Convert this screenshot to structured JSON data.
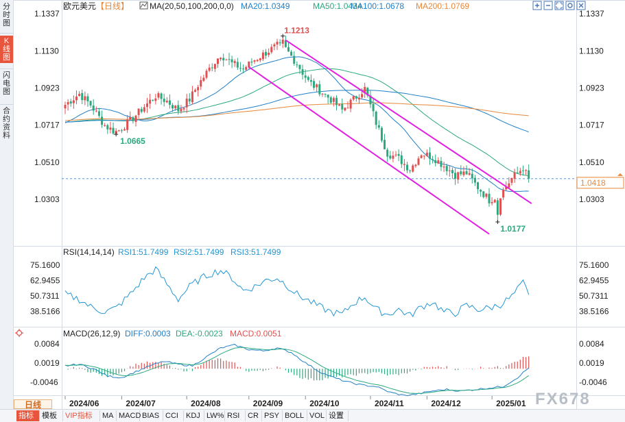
{
  "sidebar": {
    "tabs": [
      {
        "label": "分时图"
      },
      {
        "label": "K线图",
        "active": true
      },
      {
        "label": "闪电图"
      },
      {
        "label": "合约资料"
      }
    ]
  },
  "toolbar": {
    "icons": [
      "zoom-in-icon",
      "zoom-out-icon",
      "fullscreen-icon",
      "settings-icon",
      "close-icon"
    ]
  },
  "main": {
    "symbol": "欧元美元",
    "period": "【日线】",
    "ma_label": "MA(20,50,100,200,0,0)",
    "ma20_label": "MA20:1.0349",
    "ma50_label": "MA50:1.0434",
    "ma100_label": "MA100:1.0678",
    "ma200_label": "MA200:1.0769",
    "last_price": "1.0418",
    "high_label": "1.1213",
    "low1_label": "1.0665",
    "low2_label": "1.0177"
  },
  "rsi": {
    "title": "RSI(14,14,14)",
    "rsi1_label": "RSI1:51.7499",
    "rsi2_label": "RSI2:51.7499",
    "rsi3_label": "RSI3:51.7499"
  },
  "macd": {
    "title": "MACD(26,12,9)",
    "diff_label": "DIFF:0.0003",
    "dea_label": "DEA:-0.0023",
    "macd_label": "MACD:0.0051"
  },
  "bottom": {
    "period_tab": "日线",
    "watermark": "FX678",
    "indicators": [
      "指标",
      "模板",
      "VIP指标",
      "MA",
      "MACD",
      "BIAS",
      "CCI",
      "KDJ",
      "LW%",
      "RSI",
      "CR",
      "PSY",
      "BOLL",
      "VOL",
      "设置"
    ]
  },
  "colors": {
    "up": "#e05050",
    "down": "#2aa87e",
    "ma20": "#1f7fc8",
    "ma50": "#2aa87e",
    "ma100": "#1f7fc8",
    "ma200": "#e8873a",
    "channel": "#e020e0",
    "rsi": "#2196d3",
    "diff": "#1f7fc8",
    "dea": "#2aa87e"
  },
  "chart_data": {
    "type": "candlestick",
    "price_ticks": [
      1.1337,
      1.113,
      1.0923,
      1.0717,
      1.051,
      1.0303
    ],
    "price_range": [
      1.0097,
      1.1337
    ],
    "x_labels": [
      "2024/06",
      "2024/07",
      "2024/08",
      "2024/09",
      "2024/10",
      "2024/11",
      "2024/12",
      "2025/01"
    ],
    "start_index_of_month": [
      0,
      20,
      43,
      65,
      85,
      108,
      128,
      151
    ],
    "candles_count": 165,
    "anchors": [
      [
        0,
        1.083
      ],
      [
        5,
        1.089
      ],
      [
        9,
        1.083
      ],
      [
        14,
        1.0715
      ],
      [
        18,
        1.0675
      ],
      [
        23,
        1.074
      ],
      [
        28,
        1.082
      ],
      [
        32,
        1.088
      ],
      [
        36,
        1.085
      ],
      [
        40,
        1.08
      ],
      [
        44,
        1.086
      ],
      [
        47,
        1.094
      ],
      [
        51,
        1.103
      ],
      [
        55,
        1.111
      ],
      [
        59,
        1.106
      ],
      [
        63,
        1.103
      ],
      [
        67,
        1.108
      ],
      [
        71,
        1.112
      ],
      [
        75,
        1.116
      ],
      [
        78,
        1.114
      ],
      [
        82,
        1.106
      ],
      [
        86,
        1.096
      ],
      [
        90,
        1.091
      ],
      [
        94,
        1.086
      ],
      [
        98,
        1.08
      ],
      [
        102,
        1.086
      ],
      [
        106,
        1.092
      ],
      [
        110,
        1.073
      ],
      [
        114,
        1.056
      ],
      [
        118,
        1.053
      ],
      [
        122,
        1.047
      ],
      [
        126,
        1.056
      ],
      [
        130,
        1.054
      ],
      [
        134,
        1.049
      ],
      [
        138,
        1.044
      ],
      [
        142,
        1.045
      ],
      [
        146,
        1.037
      ],
      [
        150,
        1.03
      ],
      [
        154,
        1.033
      ],
      [
        158,
        1.042
      ],
      [
        162,
        1.048
      ],
      [
        164,
        1.0418
      ]
    ],
    "high": {
      "index": 77,
      "value": 1.1213
    },
    "low1": {
      "index": 18,
      "value": 1.0665
    },
    "low2": {
      "index": 153,
      "value": 1.0177
    },
    "last": 1.0418,
    "ma_final": {
      "ma20": 1.0349,
      "ma50": 1.0434,
      "ma100": 1.0678,
      "ma200": 1.0769
    },
    "channel": {
      "upper": [
        [
          78,
          1.119
        ],
        [
          165,
          1.028
        ]
      ],
      "lower": [
        [
          65,
          1.104
        ],
        [
          150,
          1.011
        ]
      ]
    },
    "rsi": {
      "ticks": [
        75.16,
        62.9455,
        50.7311,
        38.5166
      ],
      "range": [
        30.0,
        80.0
      ],
      "anchors": [
        [
          0,
          52
        ],
        [
          5,
          48
        ],
        [
          9,
          42
        ],
        [
          14,
          38
        ],
        [
          18,
          41
        ],
        [
          23,
          52
        ],
        [
          28,
          65
        ],
        [
          32,
          72
        ],
        [
          36,
          60
        ],
        [
          40,
          48
        ],
        [
          44,
          58
        ],
        [
          47,
          63
        ],
        [
          51,
          68
        ],
        [
          55,
          71
        ],
        [
          59,
          65
        ],
        [
          63,
          55
        ],
        [
          67,
          58
        ],
        [
          71,
          63
        ],
        [
          75,
          65
        ],
        [
          78,
          60
        ],
        [
          82,
          52
        ],
        [
          86,
          47
        ],
        [
          90,
          42
        ],
        [
          94,
          38
        ],
        [
          98,
          36
        ],
        [
          102,
          45
        ],
        [
          106,
          50
        ],
        [
          110,
          40
        ],
        [
          114,
          36
        ],
        [
          118,
          40
        ],
        [
          122,
          35
        ],
        [
          126,
          42
        ],
        [
          130,
          46
        ],
        [
          134,
          38
        ],
        [
          138,
          37
        ],
        [
          142,
          43
        ],
        [
          146,
          40
        ],
        [
          150,
          41
        ],
        [
          154,
          44
        ],
        [
          158,
          50
        ],
        [
          162,
          61
        ],
        [
          164,
          51.75
        ]
      ],
      "rsi1": 51.7499,
      "rsi2": 51.7499,
      "rsi3": 51.7499
    },
    "macd": {
      "ticks": [
        0.0084,
        0.0019,
        -0.0046
      ],
      "range": [
        -0.0085,
        0.01
      ],
      "diff_anchors": [
        [
          0,
          0.001
        ],
        [
          5,
          0.0015
        ],
        [
          10,
          0.0
        ],
        [
          15,
          -0.0025
        ],
        [
          20,
          -0.003
        ],
        [
          25,
          -0.001
        ],
        [
          30,
          0.001
        ],
        [
          35,
          0.0025
        ],
        [
          40,
          0.0015
        ],
        [
          45,
          0.001
        ],
        [
          50,
          0.004
        ],
        [
          55,
          0.007
        ],
        [
          60,
          0.008
        ],
        [
          65,
          0.0065
        ],
        [
          70,
          0.006
        ],
        [
          75,
          0.007
        ],
        [
          80,
          0.0055
        ],
        [
          85,
          0.002
        ],
        [
          90,
          -0.001
        ],
        [
          95,
          -0.003
        ],
        [
          100,
          -0.0045
        ],
        [
          105,
          -0.0055
        ],
        [
          110,
          -0.006
        ],
        [
          115,
          -0.008
        ],
        [
          120,
          -0.009
        ],
        [
          125,
          -0.0085
        ],
        [
          130,
          -0.0075
        ],
        [
          135,
          -0.007
        ],
        [
          140,
          -0.0075
        ],
        [
          145,
          -0.007
        ],
        [
          150,
          -0.0065
        ],
        [
          155,
          -0.006
        ],
        [
          160,
          -0.003
        ],
        [
          164,
          0.0003
        ]
      ],
      "diff": 0.0003,
      "dea": -0.0023,
      "macd": 0.0051
    }
  }
}
